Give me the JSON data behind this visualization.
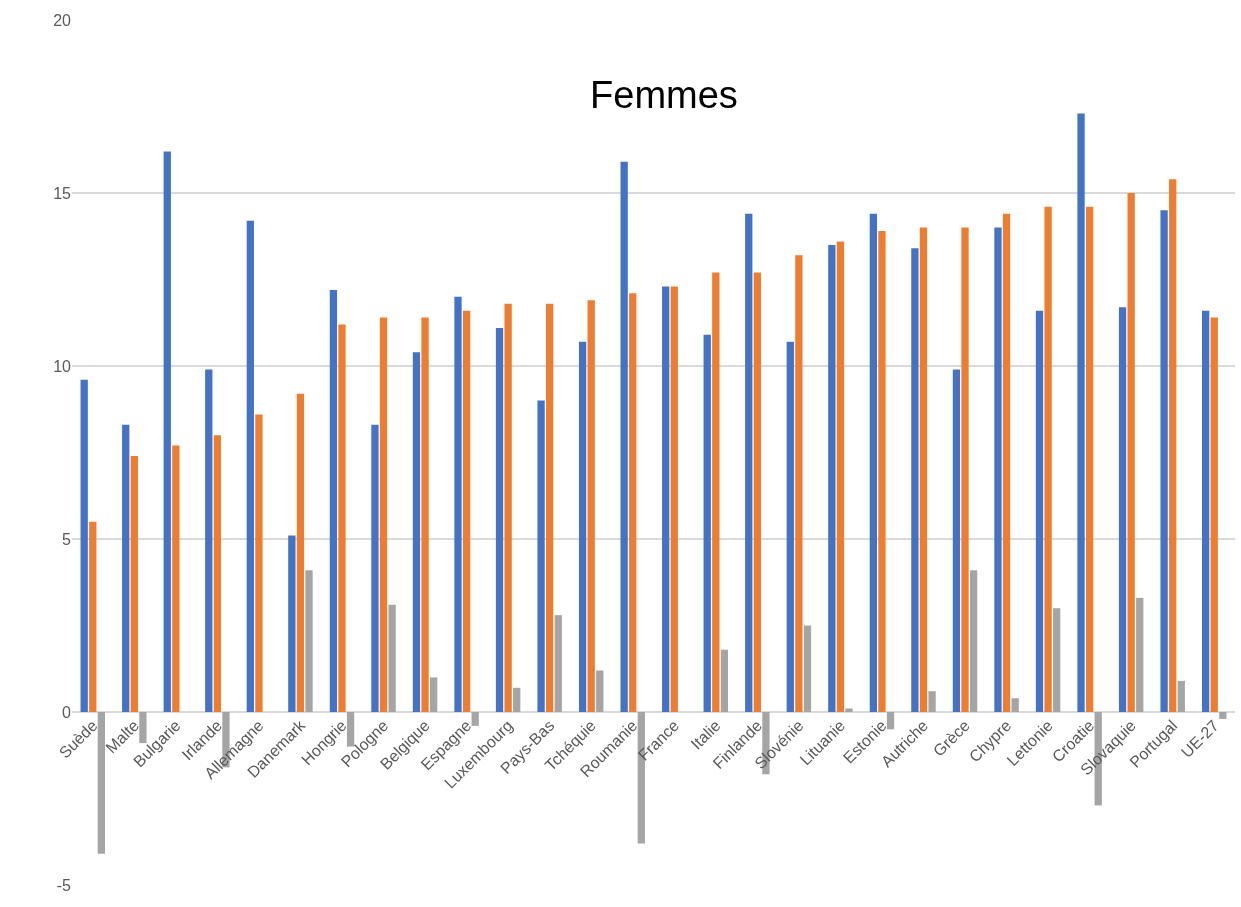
{
  "chart_data": {
    "type": "bar",
    "title": "Femmes",
    "categories": [
      "Suède",
      "Malte",
      "Bulgarie",
      "Irlande",
      "Allemagne",
      "Danemark",
      "Hongrie",
      "Pologne",
      "Belgique",
      "Espagne",
      "Luxembourg",
      "Pays-Bas",
      "Tchéquie",
      "Roumanie",
      "France",
      "Italie",
      "Finlande",
      "Slovénie",
      "Lituanie",
      "Estonie",
      "Autriche",
      "Grèce",
      "Chypre",
      "Lettonie",
      "Croatie",
      "Slovaquie",
      "Portugal",
      "UE-27"
    ],
    "series": [
      {
        "color": "#4472c4",
        "values": [
          9.6,
          8.3,
          16.2,
          9.9,
          14.2,
          5.1,
          12.2,
          8.3,
          10.4,
          12.0,
          11.1,
          9.0,
          10.7,
          15.9,
          12.3,
          10.9,
          14.4,
          10.7,
          13.5,
          14.4,
          13.4,
          9.9,
          14.0,
          11.6,
          17.3,
          11.7,
          14.5,
          11.6
        ]
      },
      {
        "color": "#ed7d31",
        "values": [
          5.5,
          7.4,
          7.7,
          8.0,
          8.6,
          9.2,
          11.2,
          11.4,
          11.4,
          11.6,
          11.8,
          11.8,
          11.9,
          12.1,
          12.3,
          12.7,
          12.7,
          13.2,
          13.6,
          13.9,
          14.0,
          14.0,
          14.4,
          14.6,
          14.6,
          15.0,
          15.4,
          11.4
        ]
      },
      {
        "color": "#a5a5a5",
        "values": [
          -4.1,
          -0.9,
          null,
          -1.6,
          null,
          4.1,
          -1.0,
          3.1,
          1.0,
          -0.4,
          0.7,
          2.8,
          1.2,
          -3.8,
          0,
          1.8,
          -1.8,
          2.5,
          0.1,
          -0.5,
          0.6,
          4.1,
          0.4,
          3.0,
          -2.7,
          3.3,
          0.9,
          -0.2
        ]
      }
    ],
    "ylim": [
      -5,
      20
    ],
    "yticks": [
      -5,
      0,
      5,
      10,
      15,
      20
    ],
    "grid": "y"
  }
}
